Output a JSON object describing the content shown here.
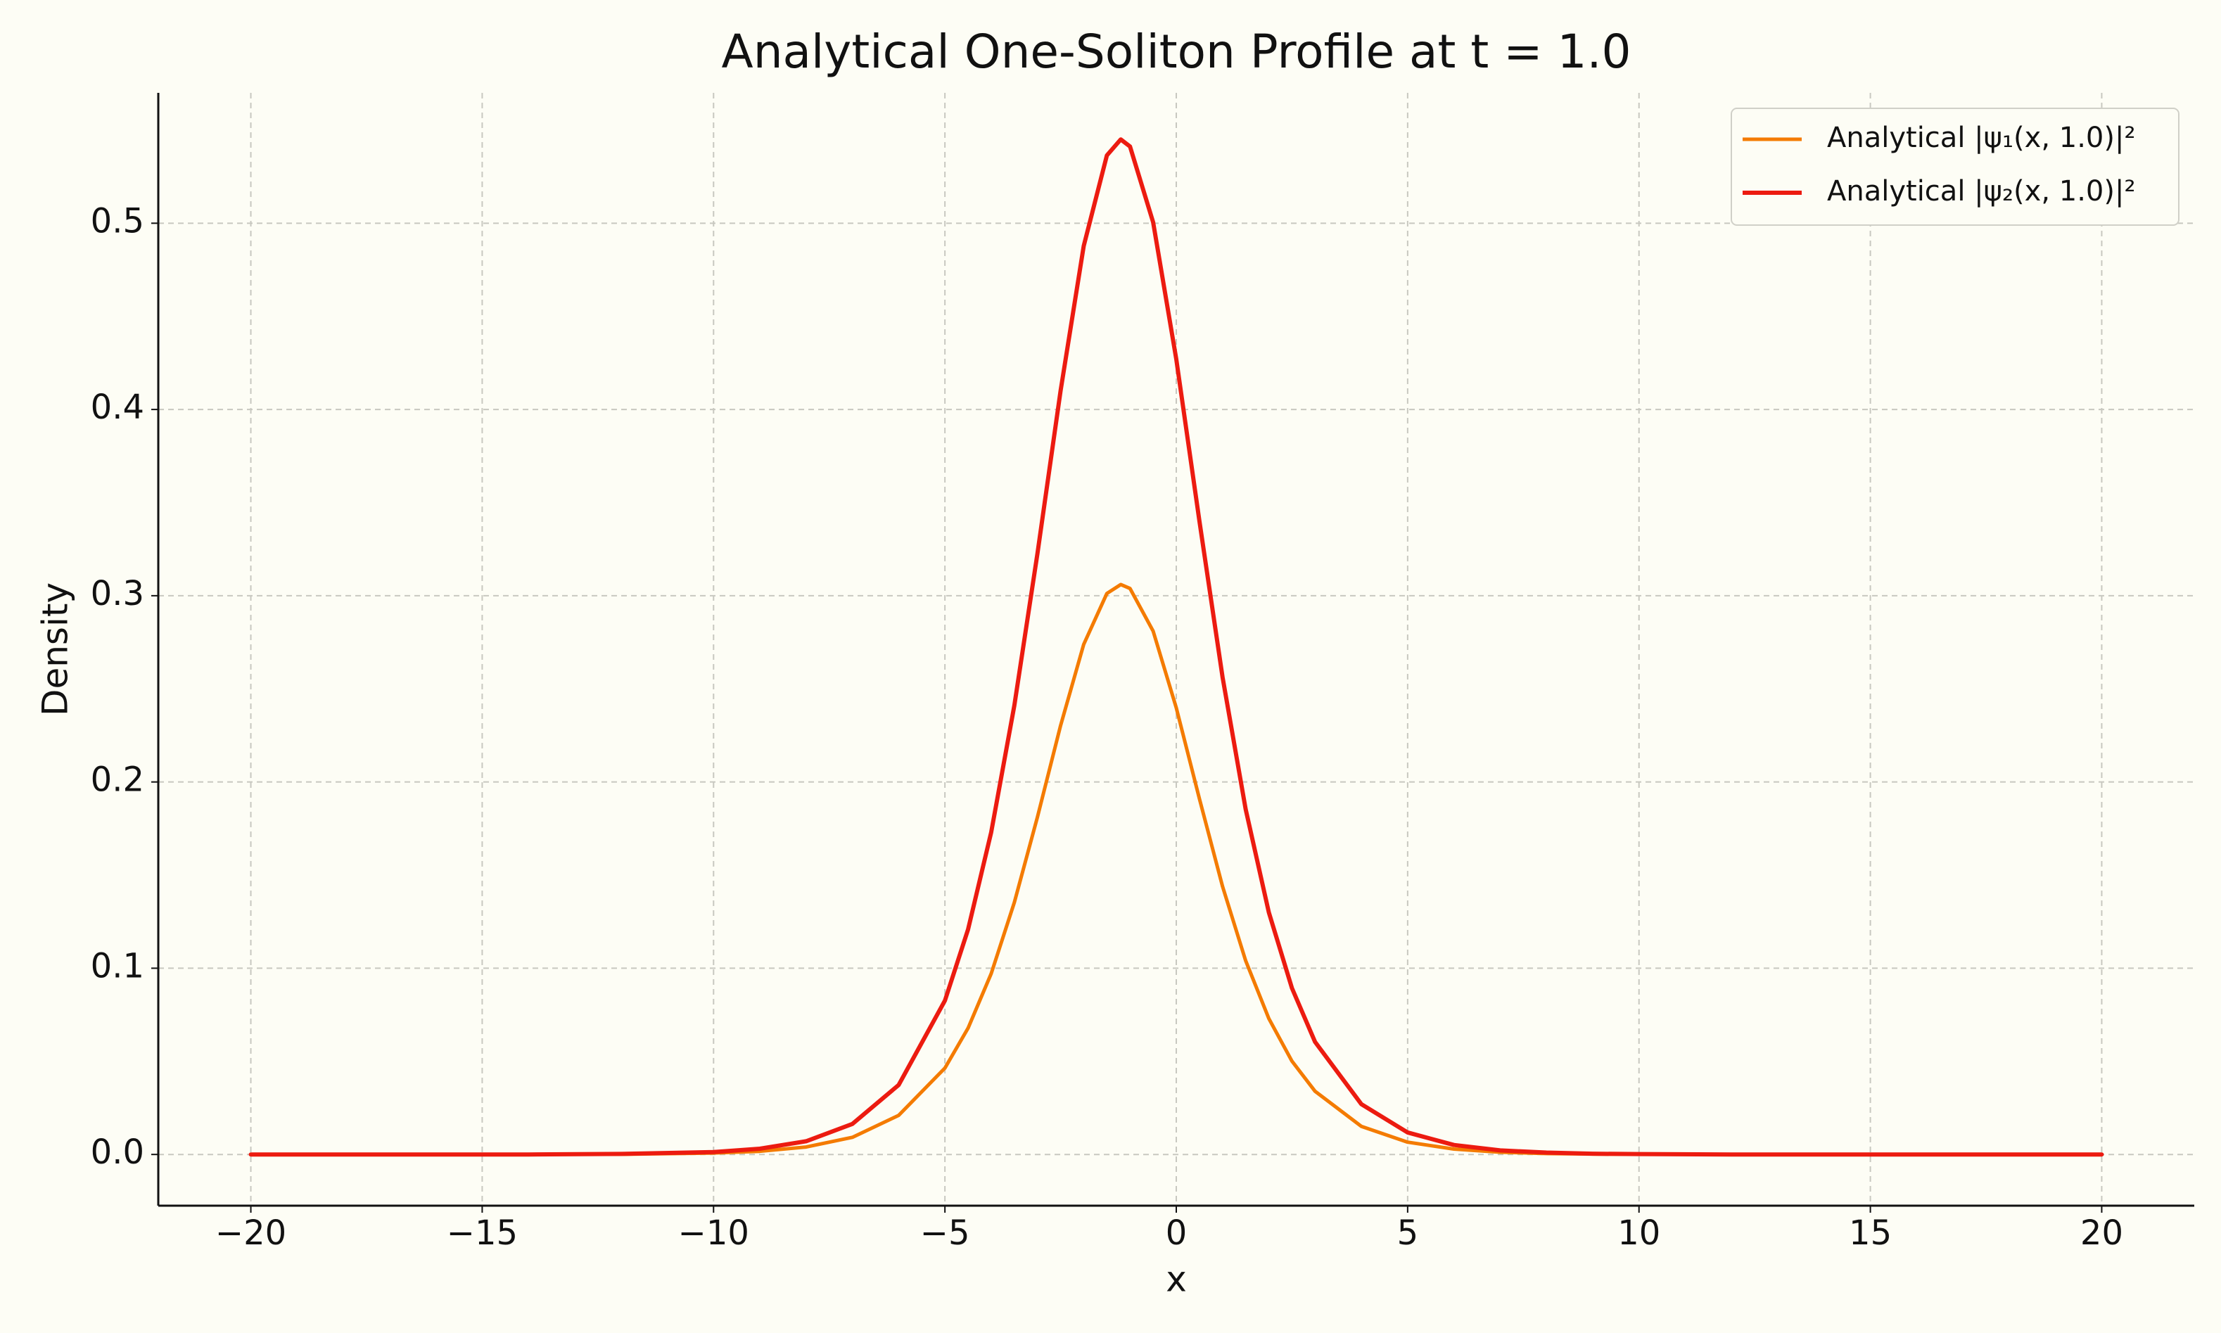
{
  "chart_data": {
    "type": "line",
    "title": "Analytical One-Soliton Profile at t = 1.0",
    "xlabel": "x",
    "ylabel": "Density",
    "x": [
      -20,
      -18,
      -16,
      -14,
      -12,
      -10,
      -9,
      -8,
      -7,
      -6,
      -5,
      -4.5,
      -4,
      -3.5,
      -3,
      -2.5,
      -2,
      -1.5,
      -1.2,
      -1,
      -0.5,
      0,
      0.5,
      1,
      1.5,
      2,
      2.5,
      3,
      4,
      5,
      6,
      7,
      8,
      9,
      10,
      12,
      14,
      16,
      18,
      20
    ],
    "series": [
      {
        "name": "Analytical |ψ₁(x, 1.0)|²",
        "color": "#f47b00",
        "values": [
          0,
          0,
          0,
          0,
          0.0001,
          0.0008,
          0.0017,
          0.004,
          0.0092,
          0.021,
          0.0464,
          0.0678,
          0.0971,
          0.1353,
          0.1812,
          0.2303,
          0.2739,
          0.3012,
          0.306,
          0.3039,
          0.281,
          0.2398,
          0.191,
          0.1439,
          0.104,
          0.073,
          0.0501,
          0.0339,
          0.0151,
          0.0066,
          0.0029,
          0.0012,
          0.0005,
          0.0002,
          0.0001,
          0,
          0,
          0,
          0,
          0
        ]
      },
      {
        "name": "Analytical |ψ₂(x, 1.0)|²",
        "color": "#ec1b10",
        "values": [
          0,
          0,
          0,
          0,
          0.0003,
          0.0013,
          0.0031,
          0.0071,
          0.0164,
          0.0373,
          0.0826,
          0.1208,
          0.173,
          0.241,
          0.3227,
          0.4101,
          0.4878,
          0.5364,
          0.545,
          0.5412,
          0.5005,
          0.427,
          0.3401,
          0.2563,
          0.1853,
          0.13,
          0.0893,
          0.0604,
          0.027,
          0.0118,
          0.0051,
          0.0022,
          0.001,
          0.0004,
          0.0002,
          0,
          0,
          0,
          0,
          0
        ]
      }
    ],
    "xlim": [
      -22,
      22
    ],
    "xticks": [
      {
        "value": -20,
        "label": "−20"
      },
      {
        "value": -15,
        "label": "−15"
      },
      {
        "value": -10,
        "label": "−10"
      },
      {
        "value": -5,
        "label": "−5"
      },
      0,
      5,
      10,
      15,
      20
    ],
    "ylim": [
      -0.0275,
      0.57
    ],
    "yticks": [
      {
        "value": 0,
        "label": "0.0"
      },
      0.1,
      0.2,
      0.3,
      0.4,
      0.5
    ],
    "grid": true,
    "legend": "upper right"
  }
}
